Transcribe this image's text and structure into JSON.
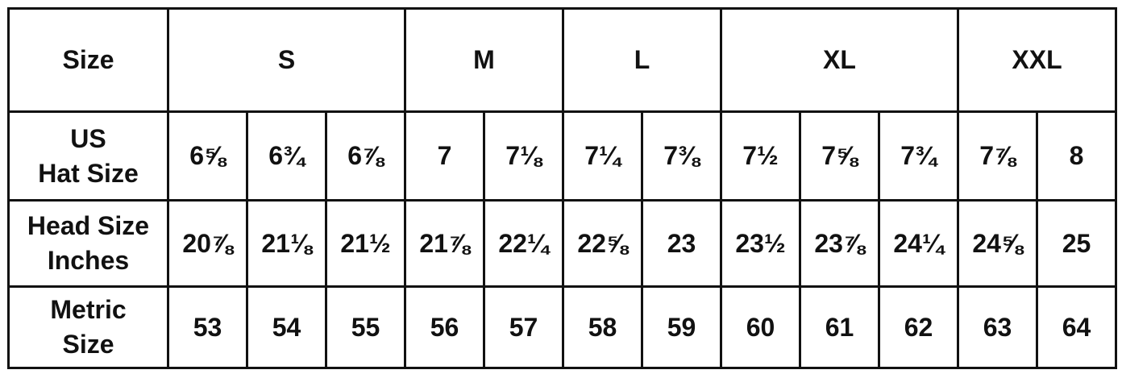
{
  "header": {
    "label": "Size",
    "groups": [
      {
        "label": "S",
        "span": 3
      },
      {
        "label": "M",
        "span": 2
      },
      {
        "label": "L",
        "span": 2
      },
      {
        "label": "XL",
        "span": 3
      },
      {
        "label": "XXL",
        "span": 2
      }
    ]
  },
  "rows": [
    {
      "label_line1": "US",
      "label_line2": "Hat Size",
      "values": [
        "6⅝",
        "6¾",
        "6⅞",
        "7",
        "7⅛",
        "7¼",
        "7⅜",
        "7½",
        "7⅝",
        "7¾",
        "7⅞",
        "8"
      ]
    },
    {
      "label_line1": "Head Size",
      "label_line2": "Inches",
      "values": [
        "20⅞",
        "21⅛",
        "21½",
        "21⅞",
        "22¼",
        "22⅝",
        "23",
        "23½",
        "23⅞",
        "24¼",
        "24⅝",
        "25"
      ]
    },
    {
      "label_line1": "Metric",
      "label_line2": "Size",
      "values": [
        "53",
        "54",
        "55",
        "56",
        "57",
        "58",
        "59",
        "60",
        "61",
        "62",
        "63",
        "64"
      ]
    }
  ]
}
